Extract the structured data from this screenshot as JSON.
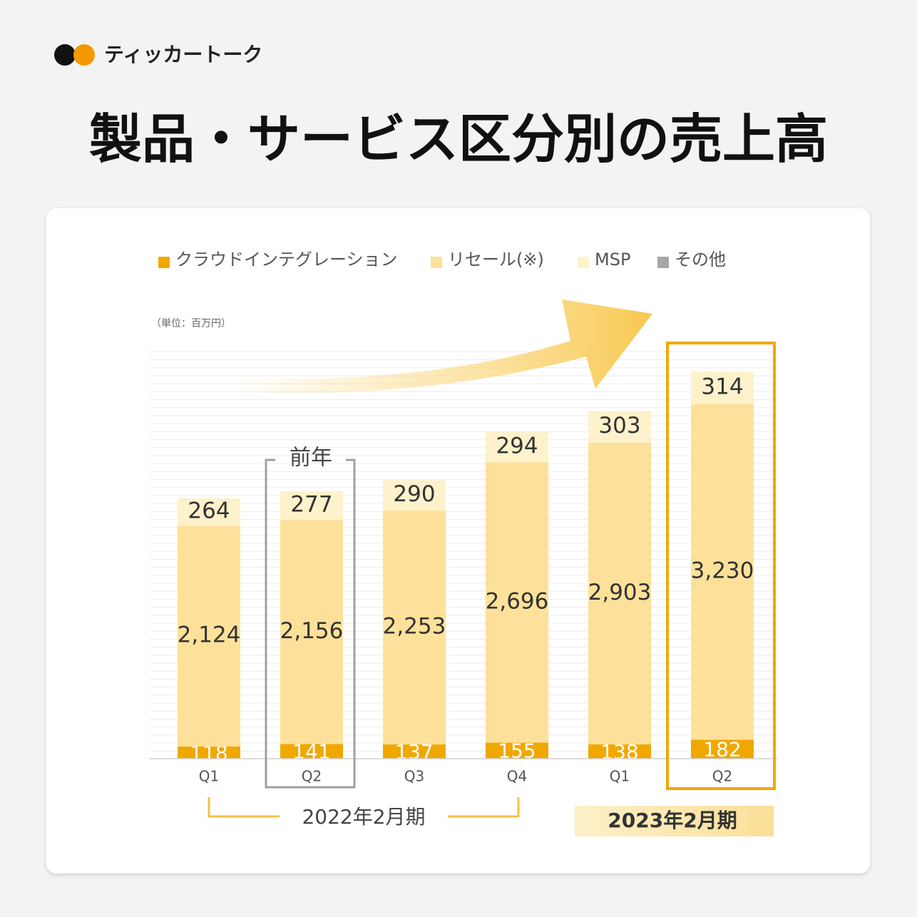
{
  "brand": "ティッカートーク",
  "chart_data": {
    "type": "stacked_bar",
    "title": "製品・サービス区分別の売上高",
    "unit": "（単位：百万円）",
    "categories": [
      "Q1",
      "Q2",
      "Q3",
      "Q4",
      "Q1",
      "Q2"
    ],
    "series": [
      {
        "name": "クラウドインテグレーション",
        "color": "#f0a800",
        "values": [
          118,
          141,
          137,
          155,
          138,
          182
        ],
        "value_labels": [
          "118",
          "141",
          "137",
          "155",
          "138",
          "182"
        ]
      },
      {
        "name": "リセール(※)",
        "color": "#fde19a",
        "values": [
          2124,
          2156,
          2253,
          2696,
          2903,
          3230
        ],
        "value_labels": [
          "2,124",
          "2,156",
          "2,253",
          "2,696",
          "2,903",
          "3,230"
        ]
      },
      {
        "name": "MSP",
        "color": "#fef2cc",
        "values": [
          264,
          277,
          290,
          294,
          303,
          314
        ],
        "value_labels": [
          "264",
          "277",
          "290",
          "294",
          "303",
          "314"
        ]
      },
      {
        "name": "その他",
        "color": "#a6a6a6",
        "values": [
          null,
          null,
          null,
          null,
          null,
          null
        ]
      }
    ],
    "ylim": [
      0,
      4000
    ],
    "annotations": [
      "前年",
      "2022年2月期",
      "2023年2月期"
    ]
  }
}
